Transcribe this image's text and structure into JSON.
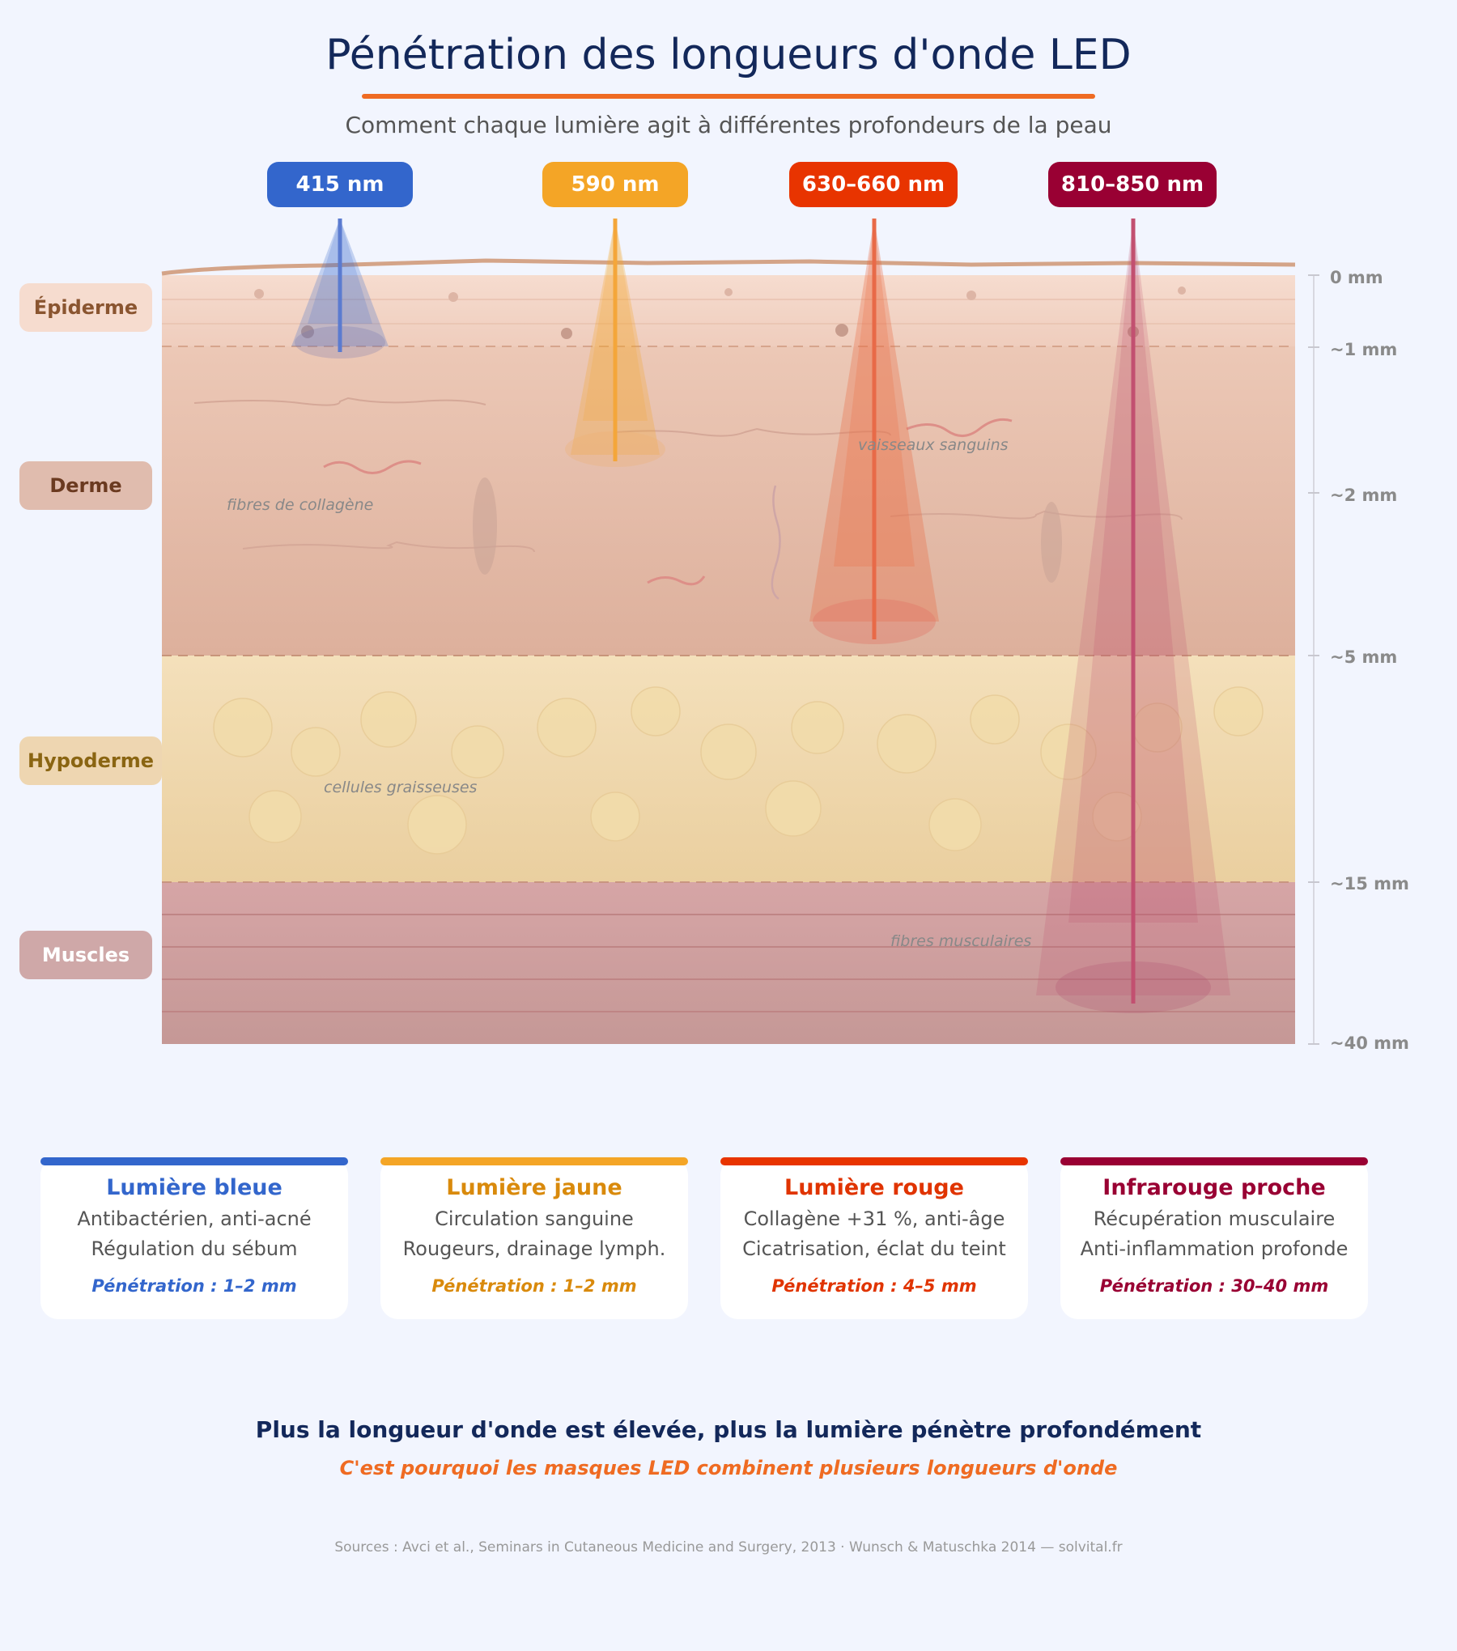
{
  "header": {
    "title": "Pénétration des longueurs d'onde LED",
    "subtitle": "Comment chaque lumière agit à différentes profondeurs de la peau"
  },
  "wavelengths": [
    {
      "label": "415 nm",
      "color": "#3366cc",
      "penetration_depth": "1–2 mm"
    },
    {
      "label": "590 nm",
      "color": "#f4a526",
      "penetration_depth": "1–2 mm"
    },
    {
      "label": "630–660 nm",
      "color": "#e83400",
      "penetration_depth": "4–5 mm"
    },
    {
      "label": "810–850 nm",
      "color": "#990033",
      "penetration_depth": "30–40 mm"
    }
  ],
  "layers": [
    {
      "label": "Épiderme",
      "text_color": "#8a5530",
      "bg": "#f6dccf"
    },
    {
      "label": "Derme",
      "text_color": "#6b3a20",
      "bg": "#e0bcae"
    },
    {
      "label": "Hypoderme",
      "text_color": "#8a6512",
      "bg": "#eed6b1"
    },
    {
      "label": "Muscles",
      "text_color": "#ffffff",
      "bg": "#cfa8a8"
    }
  ],
  "depth_scale": [
    "0 mm",
    "~1 mm",
    "~2 mm",
    "~5 mm",
    "~15 mm",
    "~40 mm"
  ],
  "annotations": {
    "collagen": "fibres de collagène",
    "vessels": "vaisseaux sanguins",
    "fat": "cellules graisseuses",
    "muscle": "fibres musculaires"
  },
  "cards": [
    {
      "title": "Lumière bleue",
      "line1": "Antibactérien, anti-acné",
      "line2": "Régulation du sébum",
      "penetration": "Pénétration : 1–2 mm",
      "color": "#3366cc",
      "title_color": "#3366cc",
      "pen_color": "#3366cc"
    },
    {
      "title": "Lumière jaune",
      "line1": "Circulation sanguine",
      "line2": "Rougeurs, drainage lymph.",
      "penetration": "Pénétration : 1–2 mm",
      "color": "#f4a526",
      "title_color": "#d98a0c",
      "pen_color": "#d98a0c"
    },
    {
      "title": "Lumière rouge",
      "line1": "Collagène +31 %, anti-âge",
      "line2": "Cicatrisation, éclat du teint",
      "penetration": "Pénétration : 4–5 mm",
      "color": "#e83400",
      "title_color": "#e03400",
      "pen_color": "#e03400"
    },
    {
      "title": "Infrarouge proche",
      "line1": "Récupération musculaire",
      "line2": "Anti-inflammation profonde",
      "penetration": "Pénétration : 30–40 mm",
      "color": "#990033",
      "title_color": "#990033",
      "pen_color": "#990033"
    }
  ],
  "footer": {
    "conclusion": "Plus la longueur d'onde est élevée, plus la lumière pénètre profondément",
    "conclusion_sub": "C'est pourquoi les masques LED combinent plusieurs longueurs d'onde",
    "sources": "Sources : Avci et al., Seminars in Cutaneous Medicine and Surgery, 2013 · Wunsch & Matuschka 2014 — solvital.fr"
  }
}
